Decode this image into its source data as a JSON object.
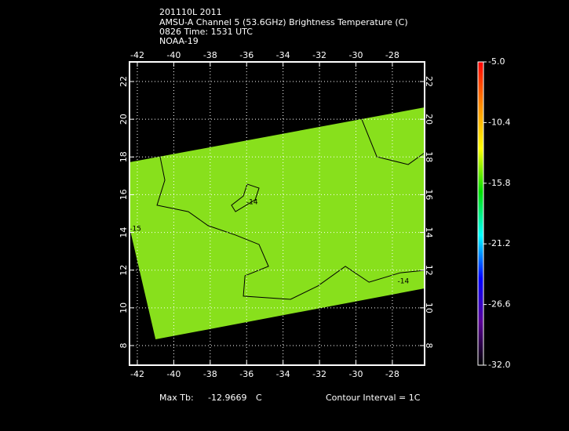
{
  "chart_data": {
    "type": "map",
    "title_lines": [
      "201110L 2011",
      "AMSU-A Channel 5 (53.6GHz) Brightness Temperature (C)",
      "0826 Time: 1531 UTC",
      "NOAA-19"
    ],
    "xlim": [
      -42.43,
      -26.23
    ],
    "ylim": [
      6.96,
      23.04
    ],
    "xticks": [
      -42,
      -40,
      -38,
      -36,
      -34,
      -32,
      -30,
      -28
    ],
    "yticks": [
      8,
      10,
      12,
      14,
      16,
      18,
      20,
      22
    ],
    "grid": true,
    "swath": {
      "color": "#88e01c",
      "lon": [
        -42.43,
        -26.23,
        -26.23,
        -41.0,
        -42.43
      ],
      "lat": [
        17.72,
        20.63,
        11.03,
        8.33,
        14.27
      ]
    },
    "contours": [
      {
        "lon": [
          -40.75,
          -40.49,
          -40.92,
          -39.2,
          -38.12,
          -36.61,
          -35.32,
          -34.8,
          -36.09,
          -36.18,
          -33.59,
          -32.09,
          -30.58,
          -29.28,
          -27.56,
          -26.23
        ],
        "lat": [
          18.01,
          16.77,
          15.44,
          15.1,
          14.36,
          13.86,
          13.36,
          12.2,
          11.7,
          10.62,
          10.45,
          11.16,
          12.2,
          11.36,
          11.86,
          11.99
        ]
      },
      {
        "lon": [
          -35.97,
          -35.32,
          -35.53,
          -36.61,
          -36.83,
          -36.18,
          -35.97
        ],
        "lat": [
          16.56,
          16.35,
          15.73,
          15.1,
          15.44,
          15.93,
          16.56
        ]
      },
      {
        "lon": [
          -29.72,
          -28.85,
          -27.13,
          -26.23
        ],
        "lat": [
          20.09,
          18.01,
          17.6,
          18.22
        ]
      }
    ],
    "contour_labels": [
      {
        "text": "-14",
        "lon": -35.7,
        "lat": 15.6
      },
      {
        "text": "-14",
        "lon": -27.4,
        "lat": 11.4
      },
      {
        "text": "-15",
        "lon": -42.1,
        "lat": 14.2
      }
    ],
    "colorbar": {
      "lim": [
        -32.0,
        -5.0
      ],
      "colors": [
        "#000000",
        "#5a0096",
        "#0000ff",
        "#00ffff",
        "#00e000",
        "#ffff00",
        "#ff8c00",
        "#ff0000"
      ],
      "ticks": [
        {
          "value": -5.0,
          "label": "-5.0"
        },
        -10.4,
        -15.8,
        -21.2,
        -26.6,
        {
          "value": -32.0,
          "label": "-32.0"
        }
      ]
    },
    "footer": {
      "max_label": "Max Tb:",
      "max_value": "-12.9669",
      "max_unit": "C",
      "contour_interval": "Contour Interval = 1C"
    }
  }
}
